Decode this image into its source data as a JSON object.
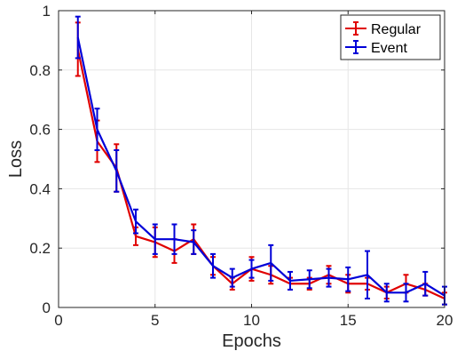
{
  "chart_data": {
    "type": "line",
    "xlabel": "Epochs",
    "ylabel": "Loss",
    "xlim": [
      0,
      20
    ],
    "ylim": [
      0,
      1
    ],
    "xticks": [
      0,
      5,
      10,
      15,
      20
    ],
    "yticks": [
      0,
      0.2,
      0.4,
      0.6,
      0.8,
      1
    ],
    "xtick_labels": [
      "0",
      "5",
      "10",
      "15",
      "20"
    ],
    "ytick_labels": [
      "0",
      "0.2",
      "0.4",
      "0.6",
      "0.8",
      "1"
    ],
    "grid": true,
    "legend_position": "top-right",
    "x": [
      1,
      2,
      3,
      4,
      5,
      6,
      7,
      8,
      9,
      10,
      11,
      12,
      13,
      14,
      15,
      16,
      17,
      18,
      19,
      20
    ],
    "series": [
      {
        "name": "Regular",
        "color": "#e00000",
        "values": [
          0.87,
          0.56,
          0.47,
          0.24,
          0.22,
          0.19,
          0.23,
          0.14,
          0.08,
          0.13,
          0.11,
          0.08,
          0.08,
          0.11,
          0.08,
          0.08,
          0.05,
          0.08,
          0.06,
          0.03
        ],
        "errors": [
          0.09,
          0.07,
          0.08,
          0.03,
          0.05,
          0.04,
          0.05,
          0.03,
          0.02,
          0.04,
          0.03,
          0.02,
          0.02,
          0.03,
          0.03,
          0.02,
          0.02,
          0.03,
          0.02,
          0.02
        ]
      },
      {
        "name": "Event",
        "color": "#0000d8",
        "values": [
          0.91,
          0.6,
          0.46,
          0.29,
          0.23,
          0.23,
          0.22,
          0.14,
          0.1,
          0.13,
          0.15,
          0.09,
          0.095,
          0.1,
          0.095,
          0.11,
          0.05,
          0.05,
          0.08,
          0.04
        ],
        "errors": [
          0.07,
          0.07,
          0.07,
          0.04,
          0.05,
          0.05,
          0.04,
          0.04,
          0.03,
          0.03,
          0.06,
          0.03,
          0.03,
          0.03,
          0.04,
          0.08,
          0.03,
          0.03,
          0.04,
          0.03
        ]
      }
    ]
  }
}
